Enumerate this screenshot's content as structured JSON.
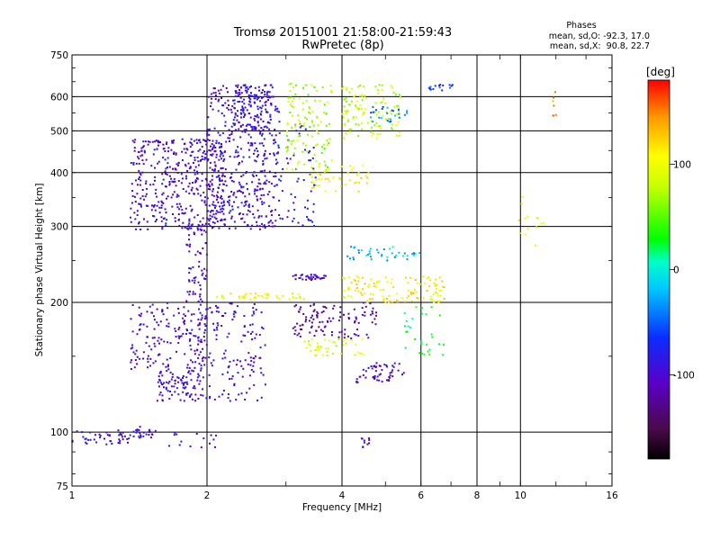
{
  "chart_data": {
    "type": "scatter",
    "title": "Tromsø 20151001 21:58:00-21:59:43",
    "subtitle": "RwPretec (8p)",
    "xlabel": "Frequency [MHz]",
    "ylabel": "Stationary phase Virtual Height [km]",
    "x_scale": "log",
    "y_scale": "log",
    "xlim": [
      1,
      16
    ],
    "ylim": [
      75,
      750
    ],
    "x_ticks": [
      1,
      2,
      4,
      6,
      8,
      10,
      16
    ],
    "x_tick_labels": [
      "1",
      "2",
      "4",
      "6",
      "8",
      "10",
      "16"
    ],
    "y_ticks": [
      75,
      100,
      200,
      300,
      400,
      500,
      600,
      750
    ],
    "y_tick_labels": [
      "75",
      "100",
      "200",
      "300",
      "400",
      "500",
      "600",
      "750"
    ],
    "grid": true,
    "stats": {
      "heading": "Phases",
      "o_line": "mean, sd,O: -92.3, 17.0",
      "x_line": "mean, sd,X:  90.8, 22.7"
    },
    "colorbar": {
      "label": "[deg]",
      "tick_labels": [
        "100",
        "0",
        "-100"
      ],
      "ticks": [
        100,
        0,
        -100
      ],
      "range": [
        -180,
        180
      ]
    },
    "clusters": [
      {
        "f": [
          1.0,
          1.35
        ],
        "h": [
          93,
          101
        ],
        "phase": -95,
        "n": 45
      },
      {
        "f": [
          1.35,
          1.55
        ],
        "h": [
          97,
          103
        ],
        "phase": -95,
        "n": 25
      },
      {
        "f": [
          1.55,
          2.1
        ],
        "h": [
          92,
          100
        ],
        "phase": -100,
        "n": 15
      },
      {
        "f": [
          1.35,
          2.0
        ],
        "h": [
          140,
          200
        ],
        "phase": -100,
        "n": 160
      },
      {
        "f": [
          1.55,
          1.95
        ],
        "h": [
          118,
          140
        ],
        "phase": -95,
        "n": 90
      },
      {
        "f": [
          1.9,
          2.7
        ],
        "h": [
          118,
          200
        ],
        "phase": -95,
        "n": 150
      },
      {
        "f": [
          1.8,
          2.0
        ],
        "h": [
          200,
          300
        ],
        "phase": -100,
        "n": 60
      },
      {
        "f": [
          1.35,
          2.2
        ],
        "h": [
          295,
          480
        ],
        "phase": -100,
        "n": 420
      },
      {
        "f": [
          2.0,
          2.9
        ],
        "h": [
          295,
          640
        ],
        "phase": -95,
        "n": 420
      },
      {
        "f": [
          2.3,
          2.8
        ],
        "h": [
          500,
          640
        ],
        "phase": -90,
        "n": 120
      },
      {
        "f": [
          2.9,
          3.5
        ],
        "h": [
          300,
          540
        ],
        "phase": -85,
        "n": 60
      },
      {
        "f": [
          3.0,
          3.8
        ],
        "h": [
          400,
          650
        ],
        "phase": 70,
        "n": 120
      },
      {
        "f": [
          3.4,
          4.6
        ],
        "h": [
          360,
          420
        ],
        "phase": 105,
        "n": 45
      },
      {
        "f": [
          4.0,
          5.4
        ],
        "h": [
          480,
          640
        ],
        "phase": 80,
        "n": 120
      },
      {
        "f": [
          4.6,
          5.6
        ],
        "h": [
          520,
          570
        ],
        "phase": -40,
        "n": 25
      },
      {
        "f": [
          2.1,
          3.3
        ],
        "h": [
          203,
          210
        ],
        "phase": 100,
        "n": 40
      },
      {
        "f": [
          3.1,
          3.7
        ],
        "h": [
          225,
          232
        ],
        "phase": -100,
        "n": 35
      },
      {
        "f": [
          4.0,
          6.8
        ],
        "h": [
          200,
          230
        ],
        "phase": 110,
        "n": 120
      },
      {
        "f": [
          4.0,
          6.0
        ],
        "h": [
          250,
          270
        ],
        "phase": -20,
        "n": 40
      },
      {
        "f": [
          3.1,
          4.8
        ],
        "h": [
          165,
          200
        ],
        "phase": -120,
        "n": 110
      },
      {
        "f": [
          3.3,
          4.5
        ],
        "h": [
          150,
          165
        ],
        "phase": 90,
        "n": 45
      },
      {
        "f": [
          4.3,
          5.5
        ],
        "h": [
          130,
          145
        ],
        "phase": -100,
        "n": 55
      },
      {
        "f": [
          5.5,
          6.8
        ],
        "h": [
          150,
          200
        ],
        "phase": 20,
        "n": 30
      },
      {
        "f": [
          4.4,
          4.6
        ],
        "h": [
          92,
          97
        ],
        "phase": -100,
        "n": 10
      },
      {
        "f": [
          6.2,
          7.1
        ],
        "h": [
          620,
          640
        ],
        "phase": -60,
        "n": 15
      },
      {
        "f": [
          9.8,
          11.3
        ],
        "h": [
          270,
          360
        ],
        "phase": 110,
        "n": 14
      },
      {
        "f": [
          11.8,
          12.0
        ],
        "h": [
          530,
          620
        ],
        "phase": 150,
        "n": 6
      }
    ]
  }
}
